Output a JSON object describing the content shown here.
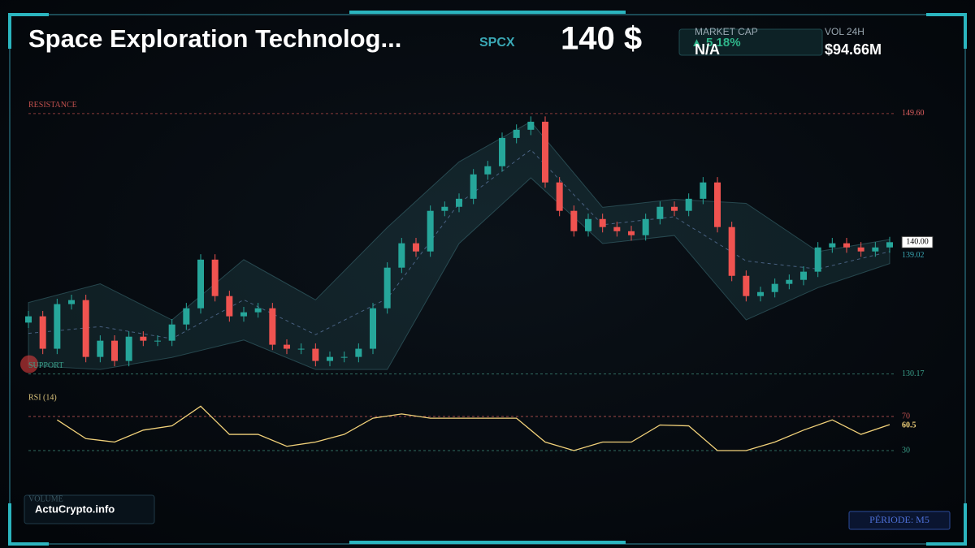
{
  "header": {
    "title": "Space Exploration Technolog...",
    "ticker": "SPCX",
    "price": "140 $",
    "change": "▲ 5.18%",
    "market_cap_label": "MARKET CAP",
    "market_cap": "N/A",
    "volume_label": "VOL 24H",
    "volume": "$94.66M"
  },
  "chart_data": [
    {
      "type": "candlestick",
      "up_color": "#26a69a",
      "down_color": "#ef5350",
      "ylim": [
        129.6,
        150.5
      ],
      "open": [
        134.0,
        134.47,
        132.05,
        135.38,
        135.68,
        131.44,
        132.65,
        131.14,
        132.95,
        132.65,
        132.65,
        133.86,
        135.07,
        138.7,
        135.98,
        134.47,
        134.77,
        135.07,
        132.35,
        132.05,
        132.05,
        131.14,
        131.44,
        131.44,
        132.05,
        135.07,
        138.1,
        139.92,
        139.31,
        142.34,
        142.64,
        143.24,
        145.06,
        145.67,
        147.78,
        148.39,
        148.99,
        144.46,
        142.34,
        140.82,
        141.73,
        141.13,
        140.82,
        140.52,
        141.73,
        142.64,
        142.34,
        143.24,
        144.46,
        141.13,
        137.49,
        135.98,
        136.28,
        136.89,
        137.19,
        137.8,
        139.61,
        139.92,
        139.61,
        139.31,
        139.61
      ],
      "high": [
        134.87,
        134.87,
        135.78,
        136.08,
        136.08,
        133.05,
        133.05,
        133.35,
        133.35,
        133.05,
        134.26,
        135.47,
        139.1,
        139.1,
        136.38,
        135.17,
        135.47,
        135.47,
        132.75,
        132.45,
        132.45,
        131.84,
        131.84,
        132.45,
        135.47,
        138.5,
        140.32,
        140.32,
        142.74,
        143.04,
        143.64,
        145.46,
        146.07,
        148.18,
        148.79,
        149.39,
        149.39,
        144.86,
        142.74,
        142.13,
        142.13,
        141.53,
        141.22,
        142.13,
        143.04,
        143.04,
        143.64,
        144.86,
        144.86,
        141.53,
        137.89,
        136.68,
        137.29,
        137.59,
        138.2,
        140.01,
        140.32,
        140.32,
        140.01,
        140.01,
        140.4
      ],
      "low": [
        133.6,
        131.65,
        131.65,
        134.98,
        131.04,
        131.04,
        130.74,
        130.74,
        132.25,
        132.25,
        132.25,
        133.46,
        134.67,
        135.58,
        134.07,
        134.07,
        134.37,
        131.95,
        131.65,
        131.65,
        130.74,
        130.74,
        131.04,
        131.04,
        131.65,
        134.67,
        137.7,
        138.91,
        138.91,
        141.94,
        142.24,
        142.84,
        144.66,
        145.27,
        147.38,
        147.99,
        144.06,
        141.94,
        140.42,
        140.42,
        140.73,
        140.42,
        140.12,
        140.12,
        141.33,
        141.94,
        141.94,
        142.84,
        140.73,
        137.09,
        135.58,
        135.58,
        135.88,
        136.49,
        136.79,
        137.4,
        139.21,
        139.21,
        138.91,
        138.91,
        139.21
      ],
      "close": [
        134.47,
        132.05,
        135.38,
        135.68,
        131.44,
        132.65,
        131.14,
        132.95,
        132.65,
        132.65,
        133.86,
        135.07,
        138.7,
        135.98,
        134.47,
        134.77,
        135.07,
        132.35,
        132.05,
        132.05,
        131.14,
        131.44,
        131.44,
        132.05,
        135.07,
        138.1,
        139.92,
        139.31,
        142.34,
        142.64,
        143.24,
        145.06,
        145.67,
        147.78,
        148.39,
        148.99,
        144.46,
        142.34,
        140.82,
        141.73,
        141.13,
        140.82,
        140.52,
        141.73,
        142.64,
        142.34,
        143.24,
        144.46,
        141.13,
        137.49,
        135.98,
        136.28,
        136.89,
        137.19,
        137.8,
        139.61,
        139.92,
        139.61,
        139.31,
        139.61,
        140.0
      ],
      "bollinger": {
        "x": [
          0,
          5,
          10,
          15,
          20,
          25,
          30,
          35,
          40,
          45,
          50,
          55,
          60
        ],
        "upper": [
          135.5,
          136.9,
          134.2,
          138.7,
          135.7,
          141.1,
          146.0,
          149.0,
          142.6,
          143.2,
          142.9,
          139.3,
          140.2
        ],
        "middle": [
          133.2,
          133.7,
          132.8,
          135.7,
          133.1,
          135.8,
          142.9,
          146.9,
          141.3,
          141.9,
          138.6,
          138.0,
          139.3
        ],
        "lower": [
          130.8,
          130.5,
          131.4,
          132.7,
          130.5,
          130.5,
          139.9,
          144.8,
          139.9,
          140.5,
          134.2,
          136.6,
          138.4
        ]
      },
      "resistance": {
        "name": "RESISTANCE",
        "level": {
          "value": 149.6,
          "label": "149.60"
        }
      },
      "support": {
        "name": "SUPPORT",
        "level": 130.17
      },
      "last_price": {
        "value": 140,
        "label": "140.00"
      },
      "band_last": 139.02
    },
    {
      "type": "line",
      "title": "RSI (14)",
      "color": "#f2d27a",
      "ylim": [
        10,
        90
      ],
      "x": [
        2,
        4,
        6,
        8,
        10,
        12,
        14,
        16,
        18,
        20,
        22,
        24,
        26,
        28,
        30,
        32,
        34,
        36,
        38,
        40,
        42,
        44,
        46,
        48,
        50,
        52,
        54,
        56,
        58,
        60
      ],
      "values": [
        66,
        44,
        40,
        54,
        59,
        82,
        49,
        49,
        35,
        40,
        49,
        68,
        73,
        68,
        68,
        68,
        68,
        40,
        30,
        40,
        40,
        60,
        59,
        30,
        30,
        40,
        54,
        66,
        49,
        60.5
      ],
      "levels": [
        70,
        30
      ]
    }
  ],
  "footer": {
    "volume_label": "VOLUME",
    "brand": "ActuCrypto.info",
    "period": "PÉRIODE: M5"
  }
}
